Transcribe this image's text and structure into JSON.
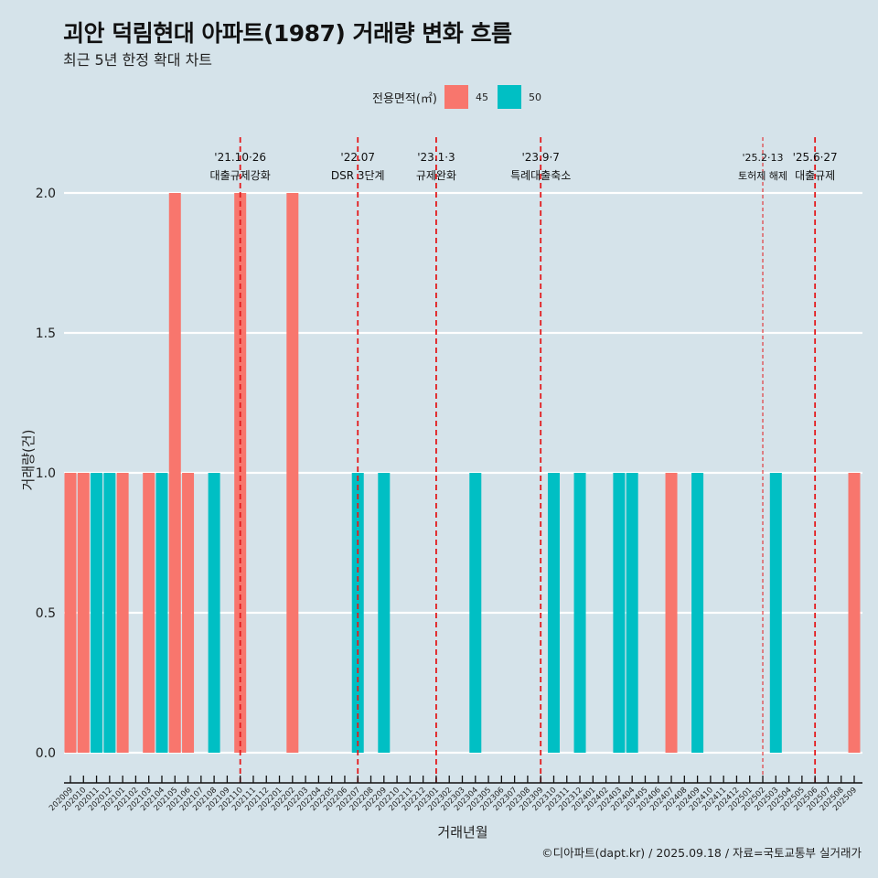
{
  "chart_data": {
    "type": "bar",
    "title": "괴안 덕림현대 아파트(1987) 거래량 변화 흐름",
    "subtitle": "최근 5년 한정 확대 차트",
    "xlabel": "거래년월",
    "ylabel": "거래량(건)",
    "ylim": [
      0,
      2.0
    ],
    "yticks": [
      "0.0",
      "0.5",
      "1.0",
      "1.5",
      "2.0"
    ],
    "ytick_values": [
      0,
      0.5,
      1.0,
      1.5,
      2.0
    ],
    "grid": true,
    "legend": {
      "title": "전용면적(㎡)",
      "placement": "top-center",
      "entries": [
        {
          "name": "45",
          "color": "#F8766D"
        },
        {
          "name": "50",
          "color": "#00BFC4"
        }
      ]
    },
    "categories": [
      "202009",
      "202010",
      "202011",
      "202012",
      "202101",
      "202102",
      "202103",
      "202104",
      "202105",
      "202106",
      "202107",
      "202108",
      "202109",
      "202110",
      "202111",
      "202112",
      "202201",
      "202202",
      "202203",
      "202204",
      "202205",
      "202206",
      "202207",
      "202208",
      "202209",
      "202210",
      "202211",
      "202212",
      "202301",
      "202302",
      "202303",
      "202304",
      "202305",
      "202306",
      "202307",
      "202308",
      "202309",
      "202310",
      "202311",
      "202312",
      "202401",
      "202402",
      "202403",
      "202404",
      "202405",
      "202406",
      "202407",
      "202408",
      "202409",
      "202410",
      "202411",
      "202412",
      "202501",
      "202502",
      "202503",
      "202504",
      "202505",
      "202506",
      "202507",
      "202508",
      "202509"
    ],
    "bars": [
      {
        "month": "202009",
        "area": "45",
        "value": 1
      },
      {
        "month": "202010",
        "area": "45",
        "value": 1
      },
      {
        "month": "202011",
        "area": "50",
        "value": 1
      },
      {
        "month": "202012",
        "area": "50",
        "value": 1
      },
      {
        "month": "202101",
        "area": "45",
        "value": 1
      },
      {
        "month": "202103",
        "area": "45",
        "value": 1
      },
      {
        "month": "202104",
        "area": "50",
        "value": 1
      },
      {
        "month": "202105",
        "area": "45",
        "value": 2
      },
      {
        "month": "202106",
        "area": "45",
        "value": 1
      },
      {
        "month": "202108",
        "area": "50",
        "value": 1
      },
      {
        "month": "202110",
        "area": "45",
        "value": 2
      },
      {
        "month": "202202",
        "area": "45",
        "value": 2
      },
      {
        "month": "202207",
        "area": "50",
        "value": 1
      },
      {
        "month": "202209",
        "area": "50",
        "value": 1
      },
      {
        "month": "202304",
        "area": "50",
        "value": 1
      },
      {
        "month": "202310",
        "area": "50",
        "value": 1
      },
      {
        "month": "202312",
        "area": "50",
        "value": 1
      },
      {
        "month": "202403",
        "area": "50",
        "value": 1
      },
      {
        "month": "202404",
        "area": "50",
        "value": 1
      },
      {
        "month": "202407",
        "area": "45",
        "value": 1
      },
      {
        "month": "202409",
        "area": "50",
        "value": 1
      },
      {
        "month": "202503",
        "area": "50",
        "value": 1
      },
      {
        "month": "202509",
        "area": "45",
        "value": 1
      }
    ],
    "annotations": [
      {
        "month": "202110",
        "date": "'21.10·26",
        "label": "대출규제강화",
        "style": "bold"
      },
      {
        "month": "202207",
        "date": "'22.07",
        "label": "DSR 3단계",
        "style": "bold"
      },
      {
        "month": "202301",
        "date": "'23.1·3",
        "label": "규제완화",
        "style": "bold"
      },
      {
        "month": "202309",
        "date": "'23.9·7",
        "label": "특례대출축소",
        "style": "bold"
      },
      {
        "month": "202502",
        "date": "'25.2·13",
        "label": "토허제 해제",
        "style": "thin"
      },
      {
        "month": "202506",
        "date": "'25.6·27",
        "label": "대출규제",
        "style": "bold"
      }
    ]
  },
  "caption": "©디아파트(dapt.kr) / 2025.09.18 / 자료=국토교통부 실거래가"
}
